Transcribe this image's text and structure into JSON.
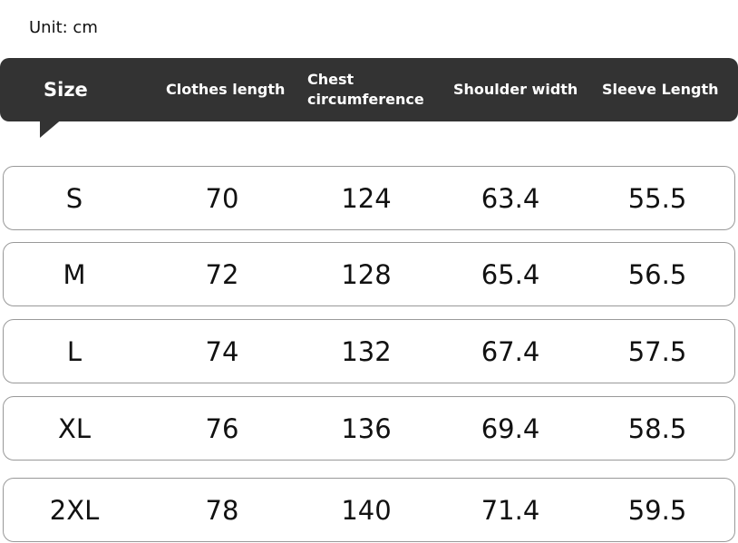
{
  "unit": "Unit: cm",
  "table": {
    "header": [
      "Size",
      "Clothes length",
      "Chest circumference",
      "Shoulder width",
      "Sleeve Length"
    ],
    "rows": [
      [
        "S",
        70,
        124,
        63.4,
        55.5
      ],
      [
        "M",
        72,
        128,
        65.4,
        56.5
      ],
      [
        "L",
        74,
        132,
        67.4,
        57.5
      ],
      [
        "XL",
        76,
        136,
        69.4,
        58.5
      ],
      [
        "2XL",
        78,
        140,
        71.4,
        59.5
      ]
    ]
  }
}
